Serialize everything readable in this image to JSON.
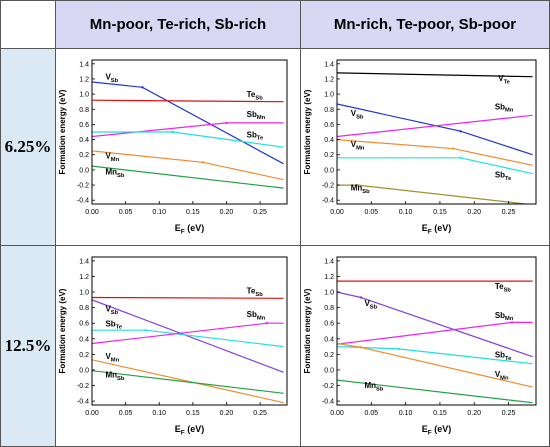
{
  "headers": {
    "col1": "Mn-poor, Te-rich, Sb-rich",
    "col2": "Mn-rich, Te-poor, Sb-poor"
  },
  "rows": [
    "6.25%",
    "12.5%"
  ],
  "chart_data": [
    {
      "type": "line",
      "xlabel": "E",
      "xlabel_sub": "F",
      "xlabel_unit": " (eV)",
      "ylabel": "Formation energy (eV)",
      "xlim": [
        0,
        0.29
      ],
      "ylim": [
        -0.45,
        1.45
      ],
      "x_ticks": [
        "0.00",
        "0.05",
        "0.10",
        "0.15",
        "0.20",
        "0.25"
      ],
      "y_ticks": [
        "-0.4",
        "-0.2",
        "0.0",
        "0.2",
        "0.4",
        "0.6",
        "0.8",
        "1.0",
        "1.2",
        "1.4"
      ],
      "series": [
        {
          "name": "V",
          "sub": "Sb",
          "color": "#2036d0",
          "x": [
            0,
            0.075,
            0.285
          ],
          "y": [
            1.16,
            1.09,
            0.08
          ],
          "label_at": [
            0.02,
            1.19
          ]
        },
        {
          "name": "Te",
          "sub": "Sb",
          "color": "#e01010",
          "x": [
            0,
            0.285
          ],
          "y": [
            0.92,
            0.9
          ],
          "label_at": [
            0.23,
            0.96
          ]
        },
        {
          "name": "Sb",
          "sub": "Mn",
          "color": "#f020f0",
          "x": [
            0,
            0.2,
            0.285
          ],
          "y": [
            0.44,
            0.62,
            0.62
          ],
          "label_at": [
            0.23,
            0.7
          ]
        },
        {
          "name": "Sb",
          "sub": "Te",
          "color": "#20e0e0",
          "x": [
            0,
            0.12,
            0.285
          ],
          "y": [
            0.5,
            0.5,
            0.3
          ],
          "label_at": [
            0.23,
            0.43
          ]
        },
        {
          "name": "V",
          "sub": "Mn",
          "color": "#f08c30",
          "x": [
            0,
            0.165,
            0.285
          ],
          "y": [
            0.25,
            0.1,
            -0.13
          ],
          "label_at": [
            0.02,
            0.15
          ]
        },
        {
          "name": "Mn",
          "sub": "Sb",
          "color": "#20a040",
          "x": [
            0,
            0.285
          ],
          "y": [
            0.05,
            -0.24
          ],
          "label_at": [
            0.02,
            -0.06
          ]
        }
      ]
    },
    {
      "type": "line",
      "xlabel": "E",
      "xlabel_sub": "F",
      "xlabel_unit": " (eV)",
      "ylabel": "Formation energy (eV)",
      "xlim": [
        0,
        0.29
      ],
      "ylim": [
        -0.45,
        1.45
      ],
      "x_ticks": [
        "0.00",
        "0.05",
        "0.10",
        "0.15",
        "0.20",
        "0.25"
      ],
      "y_ticks": [
        "-0.4",
        "-0.2",
        "0.0",
        "0.2",
        "0.4",
        "0.6",
        "0.8",
        "1.0",
        "1.2",
        "1.4"
      ],
      "series": [
        {
          "name": "V",
          "sub": "Te",
          "color": "#000000",
          "x": [
            0,
            0.285
          ],
          "y": [
            1.28,
            1.23
          ],
          "label_at": [
            0.235,
            1.17
          ]
        },
        {
          "name": "V",
          "sub": "Sb",
          "color": "#2036d0",
          "x": [
            0,
            0.18,
            0.285
          ],
          "y": [
            0.87,
            0.51,
            0.2
          ],
          "label_at": [
            0.02,
            0.71
          ]
        },
        {
          "name": "Sb",
          "sub": "Mn",
          "color": "#f020f0",
          "x": [
            0,
            0.285
          ],
          "y": [
            0.44,
            0.72
          ],
          "label_at": [
            0.23,
            0.8
          ]
        },
        {
          "name": "V",
          "sub": "Mn",
          "color": "#f08c30",
          "x": [
            0,
            0.17,
            0.285
          ],
          "y": [
            0.4,
            0.28,
            0.06
          ],
          "label_at": [
            0.02,
            0.3
          ]
        },
        {
          "name": "Sb",
          "sub": "Te",
          "color": "#20e0e0",
          "x": [
            0,
            0.18,
            0.285
          ],
          "y": [
            0.16,
            0.16,
            -0.05
          ],
          "label_at": [
            0.23,
            -0.1
          ]
        },
        {
          "name": "Mn",
          "sub": "Sb",
          "color": "#a09030",
          "x": [
            0,
            0.03,
            0.285
          ],
          "y": [
            -0.2,
            -0.2,
            -0.46
          ],
          "label_at": [
            0.02,
            -0.27
          ]
        }
      ]
    },
    {
      "type": "line",
      "xlabel": "E",
      "xlabel_sub": "F",
      "xlabel_unit": " (eV)",
      "ylabel": "Formation energy (eV)",
      "xlim": [
        0,
        0.29
      ],
      "ylim": [
        -0.45,
        1.45
      ],
      "x_ticks": [
        "0.00",
        "0.05",
        "0.10",
        "0.15",
        "0.20",
        "0.25"
      ],
      "y_ticks": [
        "-0.4",
        "-0.2",
        "0.0",
        "0.2",
        "0.4",
        "0.6",
        "0.8",
        "1.0",
        "1.2",
        "1.4"
      ],
      "series": [
        {
          "name": "Te",
          "sub": "Sb",
          "color": "#e01010",
          "x": [
            0,
            0.285
          ],
          "y": [
            0.93,
            0.92
          ],
          "label_at": [
            0.23,
            0.98
          ]
        },
        {
          "name": "V",
          "sub": "Sb",
          "color": "#8040e0",
          "x": [
            0,
            0.285
          ],
          "y": [
            0.9,
            -0.03
          ],
          "label_at": [
            0.02,
            0.75
          ]
        },
        {
          "name": "Sb",
          "sub": "Te",
          "color": "#20e0e0",
          "x": [
            0,
            0.08,
            0.285
          ],
          "y": [
            0.51,
            0.51,
            0.3
          ],
          "label_at": [
            0.02,
            0.56
          ]
        },
        {
          "name": "Sb",
          "sub": "Mn",
          "color": "#f020f0",
          "x": [
            0,
            0.26,
            0.285
          ],
          "y": [
            0.34,
            0.6,
            0.6
          ],
          "label_at": [
            0.23,
            0.68
          ]
        },
        {
          "name": "V",
          "sub": "Mn",
          "color": "#f08c30",
          "x": [
            0,
            0.285
          ],
          "y": [
            0.13,
            -0.42
          ],
          "label_at": [
            0.02,
            0.14
          ]
        },
        {
          "name": "Mn",
          "sub": "Sb",
          "color": "#20a040",
          "x": [
            0,
            0.285
          ],
          "y": [
            -0.01,
            -0.3
          ],
          "label_at": [
            0.02,
            -0.1
          ]
        }
      ]
    },
    {
      "type": "line",
      "xlabel": "E",
      "xlabel_sub": "F",
      "xlabel_unit": " (eV)",
      "ylabel": "Formation energy (eV)",
      "xlim": [
        0,
        0.29
      ],
      "ylim": [
        -0.45,
        1.45
      ],
      "x_ticks": [
        "0.00",
        "0.05",
        "0.10",
        "0.15",
        "0.20",
        "0.25"
      ],
      "y_ticks": [
        "-0.4",
        "-0.2",
        "0.0",
        "0.2",
        "0.4",
        "0.6",
        "0.8",
        "1.0",
        "1.2",
        "1.4"
      ],
      "series": [
        {
          "name": "Te",
          "sub": "Sb",
          "color": "#e01010",
          "x": [
            0,
            0.285
          ],
          "y": [
            1.14,
            1.14
          ],
          "label_at": [
            0.23,
            1.04
          ]
        },
        {
          "name": "V",
          "sub": "Sb",
          "color": "#8040e0",
          "x": [
            0,
            0.035,
            0.285
          ],
          "y": [
            1.0,
            0.93,
            0.17
          ],
          "label_at": [
            0.04,
            0.82
          ]
        },
        {
          "name": "Sb",
          "sub": "Mn",
          "color": "#f020f0",
          "x": [
            0,
            0.255,
            0.285
          ],
          "y": [
            0.33,
            0.61,
            0.61
          ],
          "label_at": [
            0.23,
            0.67
          ]
        },
        {
          "name": "Sb",
          "sub": "Te",
          "color": "#20e0e0",
          "x": [
            0,
            0.09,
            0.285
          ],
          "y": [
            0.3,
            0.27,
            0.08
          ],
          "label_at": [
            0.23,
            0.16
          ]
        },
        {
          "name": "V",
          "sub": "Mn",
          "color": "#f08c30",
          "x": [
            0,
            0.035,
            0.285
          ],
          "y": [
            0.34,
            0.29,
            -0.22
          ],
          "label_at": [
            0.23,
            -0.09
          ]
        },
        {
          "name": "Mn",
          "sub": "Sb",
          "color": "#20a040",
          "x": [
            0,
            0.285
          ],
          "y": [
            -0.13,
            -0.42
          ],
          "label_at": [
            0.04,
            -0.23
          ]
        }
      ]
    }
  ]
}
